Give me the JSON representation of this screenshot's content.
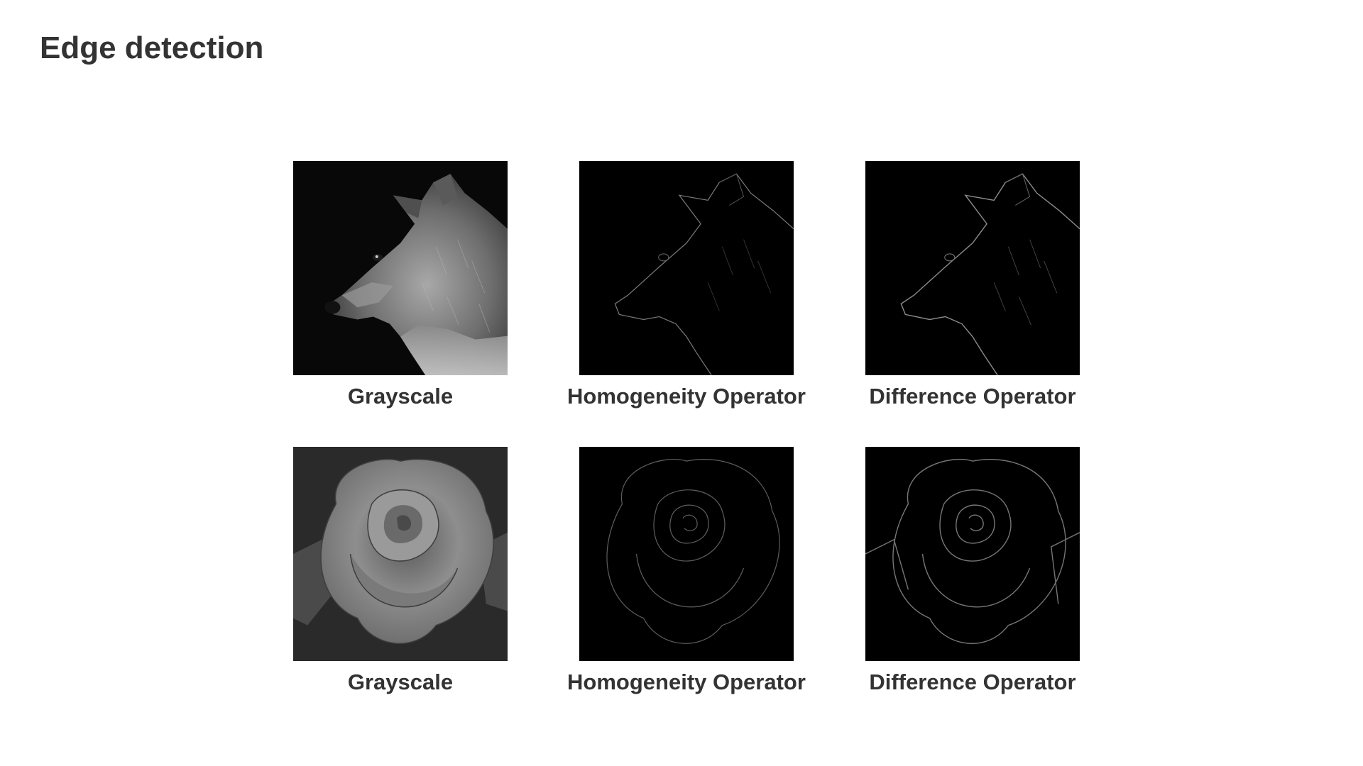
{
  "slide": {
    "title": "Edge detection"
  },
  "grid": {
    "row1": {
      "grayscale_label": "Grayscale",
      "homogeneity_label": "Homogeneity Operator",
      "difference_label": "Difference Operator"
    },
    "row2": {
      "grayscale_label": "Grayscale",
      "homogeneity_label": "Homogeneity Operator",
      "difference_label": "Difference Operator"
    }
  },
  "colors": {
    "text": "#333333",
    "background": "#ffffff",
    "image_background": "#000000"
  }
}
